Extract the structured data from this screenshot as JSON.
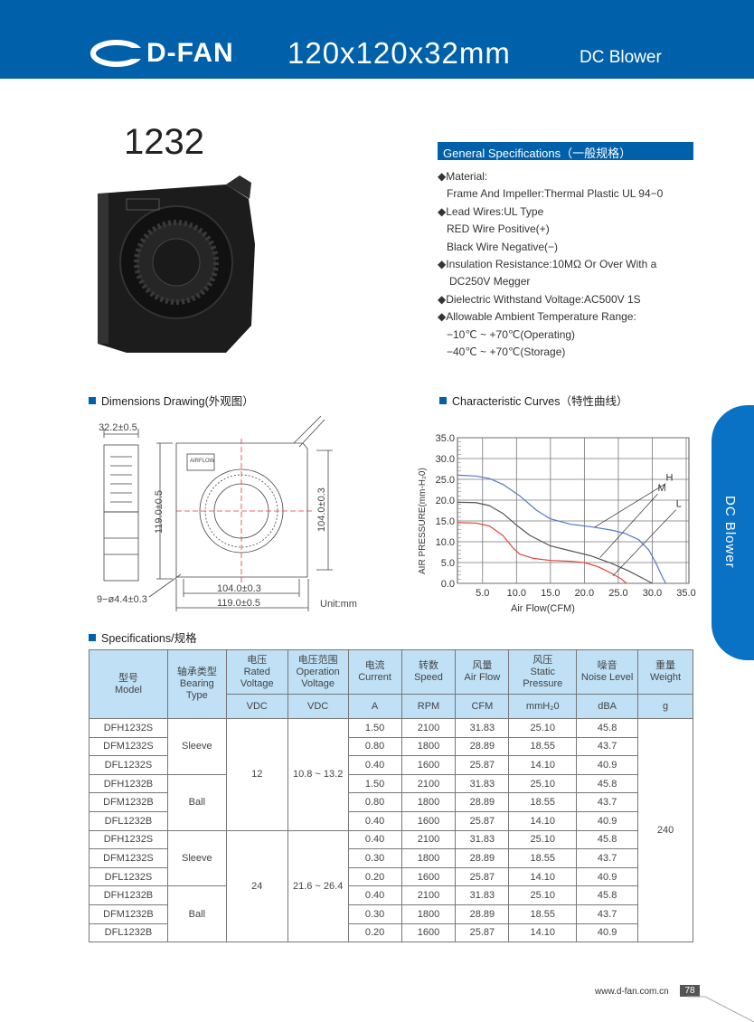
{
  "header": {
    "brand": "D-FAN",
    "size": "120x120x32mm",
    "type": "DC Blower"
  },
  "model": "1232",
  "general": {
    "title": "General Specifications（一般规格）",
    "lines": [
      "◆Material:",
      "Frame And Impeller:Thermal Plastic UL 94−0",
      "◆Lead Wires:UL Type",
      "RED Wire Positive(+)",
      "Black Wire Negative(−)",
      "◆Insulation Resistance:10MΩ  Or Over With a",
      "DC250V Megger",
      "◆Dielectric Withstand Voltage:AC500V 1S",
      "◆Allowable Ambient Temperature Range:",
      "−10℃ ~ +70℃(Operating)",
      "−40℃ ~ +70℃(Storage)"
    ]
  },
  "dimensions": {
    "title": "Dimensions Drawing(外观图）",
    "thickness": "32.2±0.5",
    "height": "119.0±0.5",
    "hole_pitch_v": "104.0±0.3",
    "hole_pitch_h": "104.0±0.3",
    "width": "119.0±0.5",
    "holes": "9−ø4.4±0.3",
    "unit": "Unit:mm",
    "airflow": "AIRFLOW"
  },
  "curves_title": "Characteristic Curves（特性曲线）",
  "chart_data": {
    "type": "line",
    "xlabel": "Air Flow(CFM)",
    "ylabel": "AIR PRESSURE(mm-H₂0)",
    "xlim": [
      1.3,
      35.4
    ],
    "ylim": [
      0,
      35
    ],
    "xticks": [
      "5.0",
      "10.0",
      "15.0",
      "20.0",
      "25.0",
      "30.0",
      "35.0"
    ],
    "yticks": [
      "0.0",
      "5.0",
      "10.0",
      "15.0",
      "20.0",
      "25.0",
      "30.0",
      "35.0"
    ],
    "grid": true,
    "series": [
      {
        "name": "H",
        "color": "#5577cc",
        "points": [
          [
            1.3,
            26
          ],
          [
            4,
            25.8
          ],
          [
            6,
            25.2
          ],
          [
            8,
            23.8
          ],
          [
            10.5,
            21
          ],
          [
            13,
            17.5
          ],
          [
            15,
            15.5
          ],
          [
            18,
            14.2
          ],
          [
            21,
            13.6
          ],
          [
            24,
            12.8
          ],
          [
            26,
            12
          ],
          [
            28,
            10.5
          ],
          [
            29.5,
            8
          ],
          [
            30.5,
            5
          ],
          [
            31.5,
            1.5
          ],
          [
            32,
            0
          ]
        ],
        "label_at": [
          21.5,
          13.5
        ]
      },
      {
        "name": "M",
        "color": "#555555",
        "points": [
          [
            1.3,
            19.5
          ],
          [
            4,
            19.4
          ],
          [
            6,
            18.7
          ],
          [
            8,
            16.8
          ],
          [
            10,
            14
          ],
          [
            12,
            11.5
          ],
          [
            15,
            9
          ],
          [
            18,
            7.8
          ],
          [
            21,
            6.6
          ],
          [
            24,
            4.8
          ],
          [
            26.5,
            3
          ],
          [
            28.5,
            1.3
          ],
          [
            30,
            0
          ]
        ],
        "label_at": [
          22.3,
          6.2
        ]
      },
      {
        "name": "L",
        "color": "#e0453a",
        "points": [
          [
            1.3,
            14.6
          ],
          [
            4,
            14.5
          ],
          [
            6,
            13.8
          ],
          [
            8,
            11.5
          ],
          [
            9.5,
            8.5
          ],
          [
            10.5,
            7
          ],
          [
            12.5,
            6
          ],
          [
            15,
            5.5
          ],
          [
            18,
            5.3
          ],
          [
            20,
            5
          ],
          [
            22,
            4
          ],
          [
            24,
            2.4
          ],
          [
            25.5,
            1
          ],
          [
            26.2,
            0
          ]
        ],
        "label_at": [
          24.2,
          1.8
        ]
      }
    ]
  },
  "specs": {
    "title": "Specifications/规格",
    "headers": [
      [
        "型号",
        "Model",
        ""
      ],
      [
        "轴承类型",
        "Bearing",
        "Type"
      ],
      [
        "电压",
        "Rated",
        "Voltage"
      ],
      [
        "电压范围",
        "Operation",
        "Voltage"
      ],
      [
        "电流",
        "Current",
        ""
      ],
      [
        "转数",
        "Speed",
        ""
      ],
      [
        "风量",
        "Air Flow",
        ""
      ],
      [
        "风压",
        "Static",
        "Pressure"
      ],
      [
        "噪音",
        "Noise Level",
        ""
      ],
      [
        "重量",
        "Weight",
        ""
      ]
    ],
    "units": [
      "VDC",
      "VDC",
      "A",
      "RPM",
      "CFM",
      "mmH₂0",
      "dBA",
      "g"
    ],
    "rows": [
      [
        "DFH1232S",
        "1.50",
        "2100",
        "31.83",
        "25.10",
        "45.8"
      ],
      [
        "DFM1232S",
        "0.80",
        "1800",
        "28.89",
        "18.55",
        "43.7"
      ],
      [
        "DFL1232S",
        "0.40",
        "1600",
        "25.87",
        "14.10",
        "40.9"
      ],
      [
        "DFH1232B",
        "1.50",
        "2100",
        "31.83",
        "25.10",
        "45.8"
      ],
      [
        "DFM1232B",
        "0.80",
        "1800",
        "28.89",
        "18.55",
        "43.7"
      ],
      [
        "DFL1232B",
        "0.40",
        "1600",
        "25.87",
        "14.10",
        "40.9"
      ],
      [
        "DFH1232S",
        "0.40",
        "2100",
        "31.83",
        "25.10",
        "45.8"
      ],
      [
        "DFM1232S",
        "0.30",
        "1800",
        "28.89",
        "18.55",
        "43.7"
      ],
      [
        "DFL1232S",
        "0.20",
        "1600",
        "25.87",
        "14.10",
        "40.9"
      ],
      [
        "DFH1232B",
        "0.40",
        "2100",
        "31.83",
        "25.10",
        "45.8"
      ],
      [
        "DFM1232B",
        "0.30",
        "1800",
        "28.89",
        "18.55",
        "43.7"
      ],
      [
        "DFL1232B",
        "0.20",
        "1600",
        "25.87",
        "14.10",
        "40.9"
      ]
    ],
    "bearing": [
      "Sleeve",
      "Ball",
      "Sleeve",
      "Ball"
    ],
    "rated": [
      "12",
      "24"
    ],
    "operation": [
      "10.8 ~ 13.2",
      "21.6 ~ 26.4"
    ],
    "weight": "240"
  },
  "side_tab": "DC Blower",
  "footer": {
    "url": "www.d-fan.com.cn",
    "page": "78"
  },
  "colors": {
    "brand": "#0060a9",
    "header_cell": "#bfe0f5"
  }
}
